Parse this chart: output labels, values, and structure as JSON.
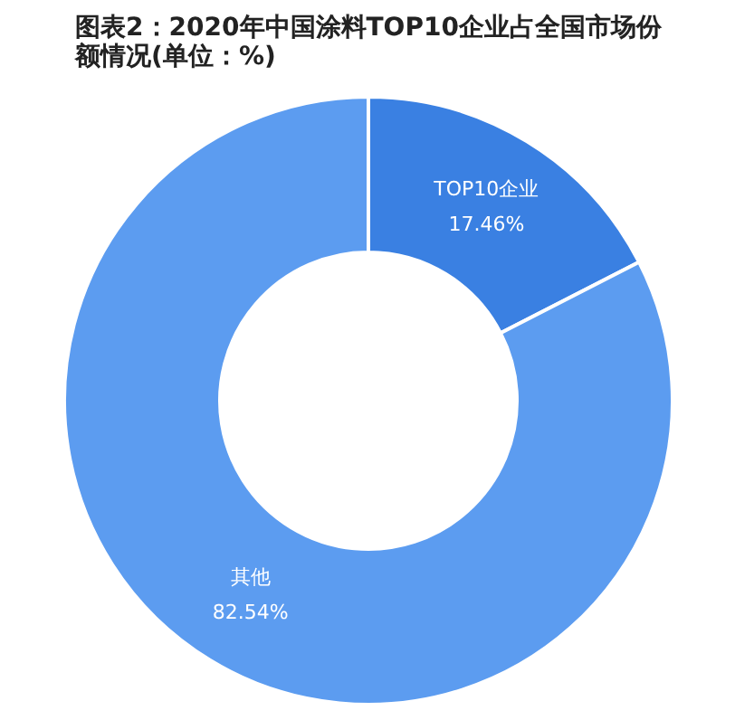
{
  "chart_data": {
    "type": "donut",
    "title": "图表2：2020年中国涂料TOP10企业占全国市场份额情况(单位：%)",
    "categories": [
      "TOP10企业",
      "其他"
    ],
    "values": [
      17.46,
      82.54
    ],
    "colors": [
      "#3a80e2",
      "#5c9cf0"
    ],
    "value_labels": [
      "17.46%",
      "82.54%"
    ]
  }
}
